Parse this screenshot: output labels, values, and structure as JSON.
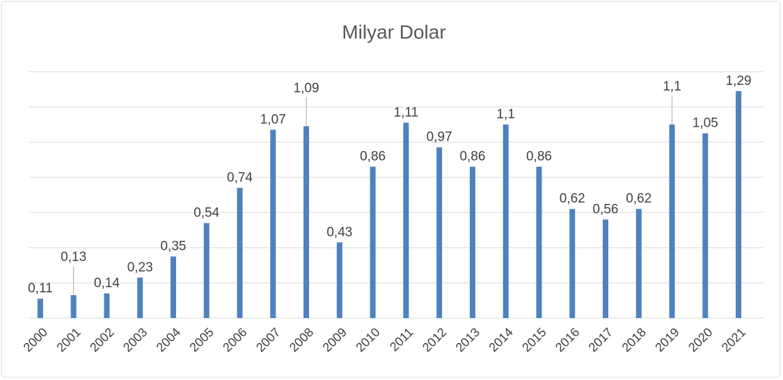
{
  "chart_data": {
    "type": "bar",
    "title": "Milyar Dolar",
    "categories": [
      "2000",
      "2001",
      "2002",
      "2003",
      "2004",
      "2005",
      "2006",
      "2007",
      "2008",
      "2009",
      "2010",
      "2011",
      "2012",
      "2013",
      "2014",
      "2015",
      "2016",
      "2017",
      "2018",
      "2019",
      "2020",
      "2021"
    ],
    "values": [
      0.11,
      0.13,
      0.14,
      0.23,
      0.35,
      0.54,
      0.74,
      1.07,
      1.09,
      0.43,
      0.86,
      1.11,
      0.97,
      0.86,
      1.1,
      0.86,
      0.62,
      0.56,
      0.62,
      1.1,
      1.05,
      1.29
    ],
    "value_labels": [
      "0,11",
      "0,13",
      "0,14",
      "0,23",
      "0,35",
      "0,54",
      "0,74",
      "1,07",
      "1,09",
      "0,43",
      "0,86",
      "1,11",
      "0,97",
      "0,86",
      "1,1",
      "0,86",
      "0,62",
      "0,56",
      "0,62",
      "1,1",
      "1,05",
      "1,29"
    ],
    "color": "#4f81bd",
    "ylim": [
      0,
      1.4
    ],
    "yticks": [
      0,
      0.2,
      0.4,
      0.6,
      0.8,
      1,
      1.2,
      1.4
    ],
    "grid": true
  }
}
